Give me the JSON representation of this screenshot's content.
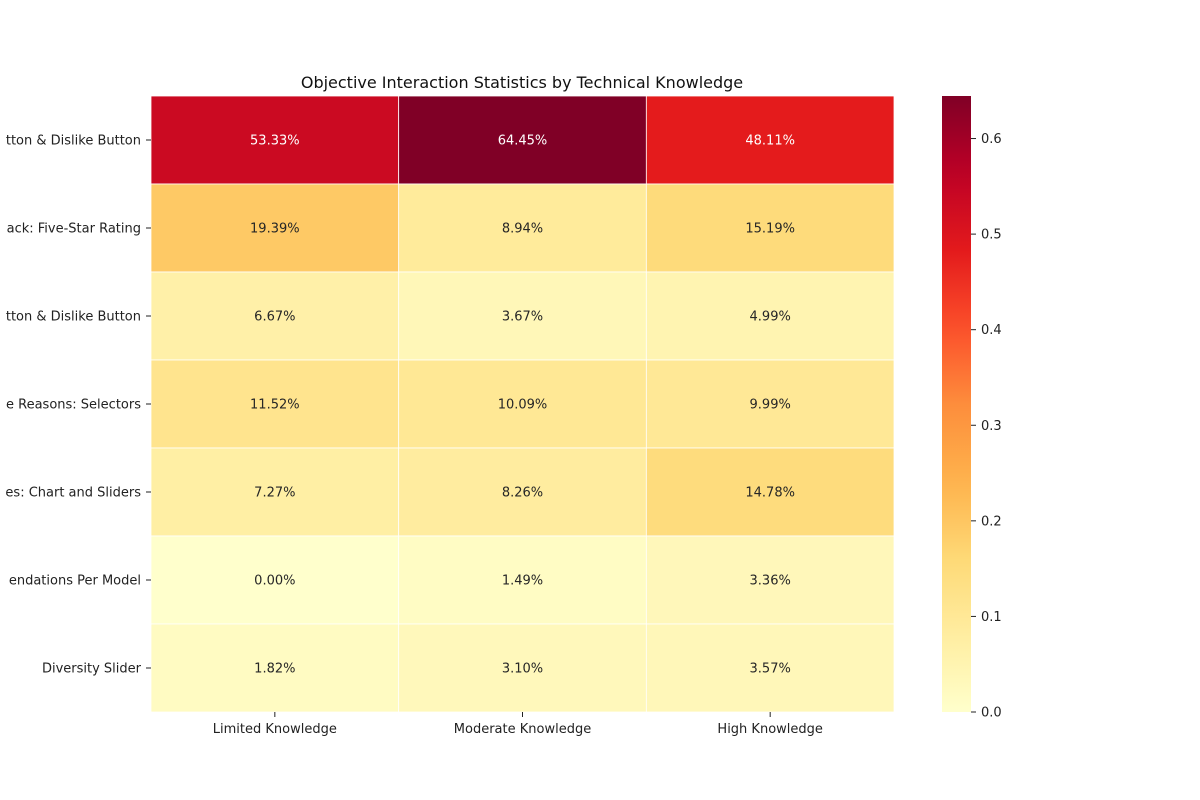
{
  "chart_data": {
    "type": "heatmap",
    "title": "Objective Interaction Statistics by Technical Knowledge",
    "xlabel": "",
    "ylabel": "",
    "columns": [
      "Limited Knowledge",
      "Moderate Knowledge",
      "High Knowledge"
    ],
    "rows": [
      "tton & Dislike Button",
      "ack: Five-Star Rating",
      "tton & Dislike Button",
      "e Reasons: Selectors",
      "es: Chart and Sliders",
      "endations Per Model",
      "Diversity Slider"
    ],
    "values": [
      [
        0.5333,
        0.6445,
        0.4811
      ],
      [
        0.1939,
        0.0894,
        0.1519
      ],
      [
        0.0667,
        0.0367,
        0.0499
      ],
      [
        0.1152,
        0.1009,
        0.0999
      ],
      [
        0.0727,
        0.0826,
        0.1478
      ],
      [
        0.0,
        0.0149,
        0.0336
      ],
      [
        0.0182,
        0.031,
        0.0357
      ]
    ],
    "labels": [
      [
        "53.33%",
        "64.45%",
        "48.11%"
      ],
      [
        "19.39%",
        "8.94%",
        "15.19%"
      ],
      [
        "6.67%",
        "3.67%",
        "4.99%"
      ],
      [
        "11.52%",
        "10.09%",
        "9.99%"
      ],
      [
        "7.27%",
        "8.26%",
        "14.78%"
      ],
      [
        "0.00%",
        "1.49%",
        "3.36%"
      ],
      [
        "1.82%",
        "3.10%",
        "3.57%"
      ]
    ],
    "colormap": "YlOrRd",
    "colorbar": {
      "min": 0.0,
      "max": 0.6445,
      "ticks": [
        0.0,
        0.1,
        0.2,
        0.3,
        0.4,
        0.5,
        0.6
      ],
      "tick_labels": [
        "0.0",
        "0.1",
        "0.2",
        "0.3",
        "0.4",
        "0.5",
        "0.6"
      ]
    }
  }
}
